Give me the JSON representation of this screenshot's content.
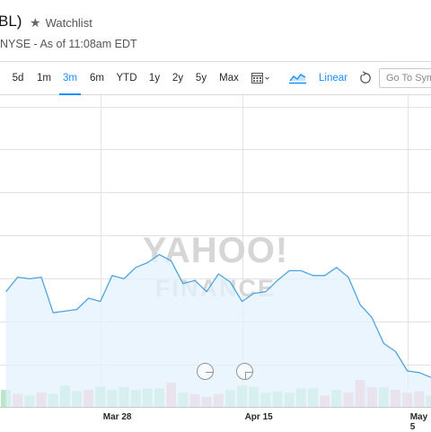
{
  "header": {
    "ticker": "BL)",
    "watchlist_label": "Watchlist",
    "exchange_line": "NYSE - As of 11:08am EDT"
  },
  "toolbar": {
    "ranges": [
      {
        "label": "5d",
        "active": false
      },
      {
        "label": "1m",
        "active": false
      },
      {
        "label": "3m",
        "active": true
      },
      {
        "label": "6m",
        "active": false
      },
      {
        "label": "YTD",
        "active": false
      },
      {
        "label": "1y",
        "active": false
      },
      {
        "label": "2y",
        "active": false
      },
      {
        "label": "5y",
        "active": false
      },
      {
        "label": "Max",
        "active": false
      }
    ],
    "scale_label": "Linear",
    "goto_placeholder": "Go To Symbol"
  },
  "icons": {
    "calendar": "calendar-icon",
    "chart_type": "line-chart-icon",
    "reset": "reset-icon",
    "zoom_out": "zoom-out-icon",
    "zoom_in": "zoom-in-icon"
  },
  "colors": {
    "accent": "#188fff",
    "line": "#4ea4e0",
    "area_fill": "#e3f1fc",
    "volume_up": "#b9e8c9",
    "volume_down": "#f5b8be",
    "grid": "#e3e3e3"
  },
  "watermark": {
    "line1": "YAHOO!",
    "line2": "FINANCE"
  },
  "chart_data": {
    "type": "area",
    "title": "",
    "xlabel": "",
    "ylabel": "",
    "x_ticks": [
      {
        "label": "Mar 28",
        "index": 8
      },
      {
        "label": "Apr 15",
        "index": 20
      },
      {
        "label": "May 5",
        "index": 34
      }
    ],
    "x_range": [
      -0.5,
      36
    ],
    "ylim": [
      0,
      100
    ],
    "grid": true,
    "price": [
      54,
      63,
      62,
      63,
      41,
      42,
      43,
      50,
      48,
      64,
      62,
      69,
      72,
      77,
      73,
      59,
      61,
      54,
      65,
      60,
      48,
      53,
      54,
      61,
      67,
      67,
      64,
      64,
      69,
      63,
      46,
      38,
      22,
      17,
      5,
      4,
      1,
      7
    ],
    "volume": [
      {
        "v": 12,
        "d": "up"
      },
      {
        "v": 9,
        "d": "down"
      },
      {
        "v": 8,
        "d": "up"
      },
      {
        "v": 10,
        "d": "down"
      },
      {
        "v": 9,
        "d": "up"
      },
      {
        "v": 15,
        "d": "up"
      },
      {
        "v": 11,
        "d": "up"
      },
      {
        "v": 12,
        "d": "down"
      },
      {
        "v": 14,
        "d": "up"
      },
      {
        "v": 12,
        "d": "up"
      },
      {
        "v": 14,
        "d": "up"
      },
      {
        "v": 12,
        "d": "up"
      },
      {
        "v": 13,
        "d": "up"
      },
      {
        "v": 13,
        "d": "up"
      },
      {
        "v": 17,
        "d": "down"
      },
      {
        "v": 10,
        "d": "up"
      },
      {
        "v": 9,
        "d": "down"
      },
      {
        "v": 7,
        "d": "down"
      },
      {
        "v": 9,
        "d": "down"
      },
      {
        "v": 12,
        "d": "up"
      },
      {
        "v": 15,
        "d": "up"
      },
      {
        "v": 14,
        "d": "up"
      },
      {
        "v": 10,
        "d": "up"
      },
      {
        "v": 11,
        "d": "up"
      },
      {
        "v": 10,
        "d": "up"
      },
      {
        "v": 13,
        "d": "up"
      },
      {
        "v": 13,
        "d": "up"
      },
      {
        "v": 8,
        "d": "down"
      },
      {
        "v": 12,
        "d": "up"
      },
      {
        "v": 10,
        "d": "down"
      },
      {
        "v": 19,
        "d": "down"
      },
      {
        "v": 14,
        "d": "down"
      },
      {
        "v": 14,
        "d": "up"
      },
      {
        "v": 12,
        "d": "down"
      },
      {
        "v": 10,
        "d": "down"
      },
      {
        "v": 11,
        "d": "down"
      },
      {
        "v": 8,
        "d": "up"
      },
      {
        "v": 6,
        "d": "up"
      }
    ]
  }
}
